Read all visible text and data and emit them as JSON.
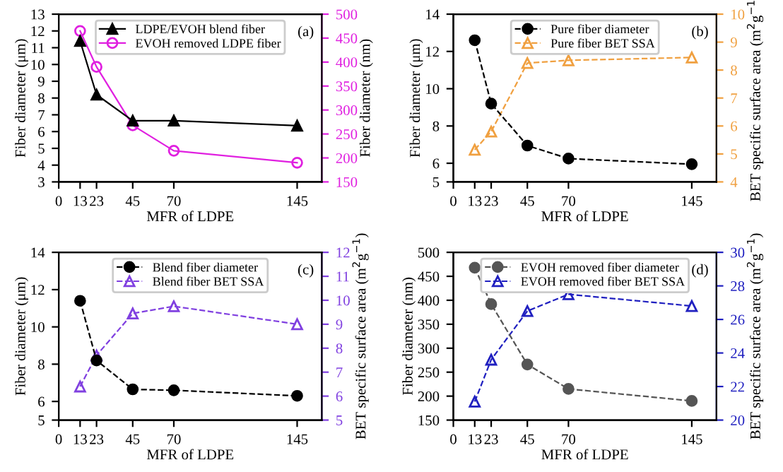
{
  "chart_data": [
    {
      "type": "line",
      "x": [
        13,
        23,
        45,
        70,
        145
      ],
      "xlabel": "MFR of LDPE",
      "ylabel": "Fiber diameter (μm)",
      "y2label": "Fiber diameter (nm)",
      "annotations": [
        "(a)"
      ],
      "xlim": [
        0,
        160
      ],
      "xticks": [
        0,
        13,
        23,
        45,
        70,
        145
      ],
      "ylim": [
        3,
        13
      ],
      "yticks": [
        3,
        4,
        5,
        6,
        7,
        8,
        9,
        10,
        11,
        12,
        13
      ],
      "y2lim": [
        150,
        500
      ],
      "y2ticks": [
        150,
        200,
        250,
        300,
        350,
        400,
        450,
        500
      ],
      "legend": "top",
      "grid": false,
      "series": [
        {
          "name": "LDPE/EVOH blend fiber",
          "color": "#000000",
          "marker": "triangle",
          "line_style": "solid",
          "values": [
            11.4,
            8.2,
            6.65,
            6.65,
            6.35
          ]
        },
        {
          "name": "EVOH removed LDPE fiber",
          "color": "#e020e0",
          "marker": "circle",
          "line_style": "solid",
          "axis": "y2",
          "values": [
            465,
            390,
            268,
            215,
            190
          ]
        }
      ]
    },
    {
      "type": "line",
      "x": [
        13,
        23,
        45,
        70,
        145
      ],
      "xlabel": "MFR of LDPE",
      "ylabel": "Fiber diameter (μm)",
      "y2label": "BET specific surface area (m$^{2}$g$^{−1}$)",
      "annotations": [
        "(b)"
      ],
      "xlim": [
        0,
        160
      ],
      "xticks": [
        0,
        13,
        23,
        45,
        70,
        145
      ],
      "ylim": [
        5,
        14
      ],
      "yticks": [
        5,
        6,
        8,
        10,
        12,
        14
      ],
      "y2lim": [
        4,
        10
      ],
      "y2ticks": [
        4,
        5,
        6,
        7,
        8,
        9,
        10
      ],
      "legend": "top",
      "grid": false,
      "series": [
        {
          "name": "Pure fiber diameter",
          "color": "#000000",
          "marker": "circle",
          "line_style": "dashed",
          "values": [
            12.6,
            9.2,
            6.95,
            6.25,
            5.95
          ]
        },
        {
          "name": "Pure fiber BET SSA",
          "color": "#f0a040",
          "marker": "triangle",
          "line_style": "dashed",
          "axis": "y2",
          "values": [
            5.15,
            5.8,
            8.25,
            8.35,
            8.45
          ]
        }
      ]
    },
    {
      "type": "line",
      "x": [
        13,
        23,
        45,
        70,
        145
      ],
      "xlabel": "MFR of LDPE",
      "ylabel": "Fiber diameter (μm)",
      "y2label": "BET specific surface area (m$^{2}$g$^{−1}$)",
      "annotations": [
        "(c)"
      ],
      "xlim": [
        0,
        160
      ],
      "xticks": [
        0,
        13,
        23,
        45,
        70,
        145
      ],
      "ylim": [
        5,
        14
      ],
      "yticks": [
        5,
        6,
        8,
        10,
        12,
        14
      ],
      "y2lim": [
        5,
        12
      ],
      "y2ticks": [
        5,
        6,
        7,
        8,
        9,
        10,
        11,
        12
      ],
      "legend": "top",
      "grid": false,
      "series": [
        {
          "name": "Blend fiber diameter",
          "color": "#000000",
          "marker": "circle",
          "line_style": "dashed",
          "values": [
            11.4,
            8.2,
            6.65,
            6.6,
            6.3
          ]
        },
        {
          "name": "Blend fiber BET SSA",
          "color": "#8040e0",
          "marker": "triangle",
          "line_style": "dashed",
          "axis": "y2",
          "values": [
            6.4,
            7.7,
            9.45,
            9.75,
            9.0
          ]
        }
      ]
    },
    {
      "type": "line",
      "x": [
        13,
        23,
        45,
        70,
        145
      ],
      "xlabel": "MFR of LDPE",
      "ylabel": "Fiber diameter (nm)",
      "y2label": "BET specific surface area (m$^{2}$g$^{−1}$)",
      "annotations": [
        "(d)"
      ],
      "xlim": [
        0,
        160
      ],
      "xticks": [
        0,
        13,
        23,
        45,
        70,
        145
      ],
      "ylim": [
        150,
        500
      ],
      "yticks": [
        150,
        200,
        250,
        300,
        350,
        400,
        450,
        500
      ],
      "y2lim": [
        20,
        30
      ],
      "y2ticks": [
        20,
        22,
        24,
        26,
        28,
        30
      ],
      "legend": "top",
      "grid": false,
      "series": [
        {
          "name": "EVOH removed fiber diameter",
          "color": "#555555",
          "marker": "circle",
          "line_style": "dashed",
          "values": [
            468,
            392,
            266,
            215,
            190
          ]
        },
        {
          "name": "EVOH removed fiber BET SSA",
          "color": "#2020c0",
          "marker": "triangle",
          "line_style": "dashed",
          "axis": "y2",
          "values": [
            21.1,
            23.6,
            26.5,
            27.5,
            26.8
          ]
        }
      ]
    }
  ]
}
